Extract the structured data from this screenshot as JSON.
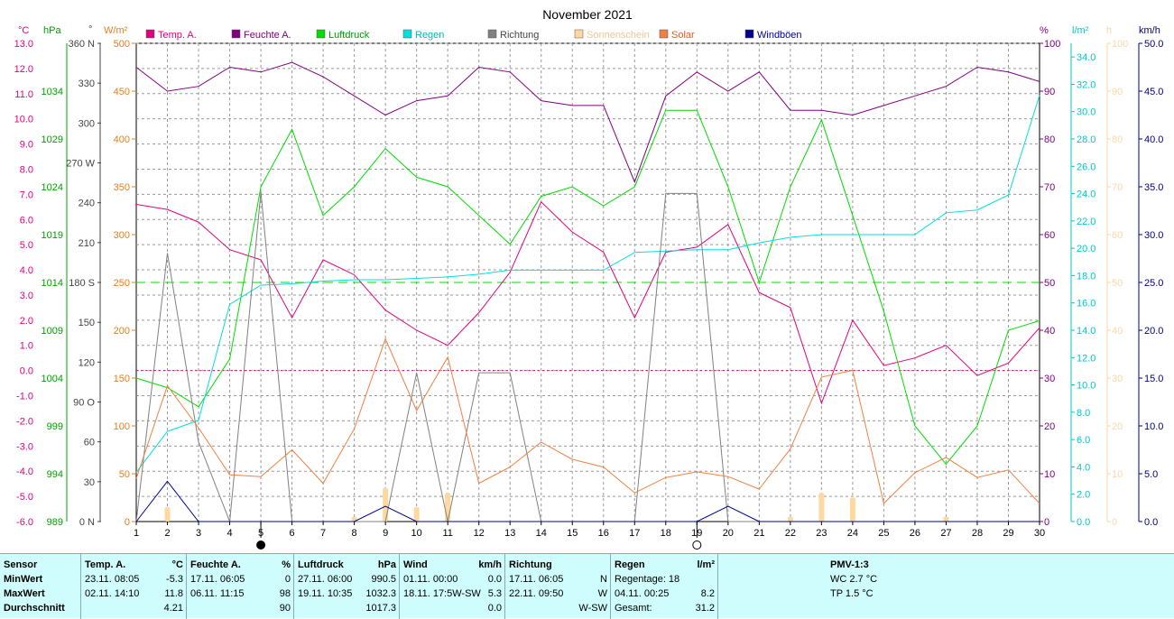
{
  "title": "November 2021",
  "axes_units": {
    "temp": "°C",
    "pressure": "hPa",
    "direction": "°",
    "solar": "W/m²",
    "humidity": "%",
    "rain": "l/m²",
    "sunshine": "h",
    "wind": "km/h"
  },
  "colors": {
    "temp": "#e0007f",
    "humidity": "#800080",
    "pressure": "#00dd00",
    "rain": "#00e0e0",
    "direction": "#808080",
    "sunshine": "#ffd8a0",
    "solar": "#f08040",
    "gust": "#000090",
    "temp_axis": "#e0007f",
    "pressure_axis": "#00a000",
    "solar_axis": "#e08020",
    "humidity_axis": "#800080",
    "rain_axis": "#00c8c8",
    "sunshine_axis": "#f8d8a8",
    "wind_axis": "#000080"
  },
  "chart_data": {
    "type": "line",
    "title": "November 2021",
    "x": [
      1,
      2,
      3,
      4,
      5,
      6,
      7,
      8,
      9,
      10,
      11,
      12,
      13,
      14,
      15,
      16,
      17,
      18,
      19,
      20,
      21,
      22,
      23,
      24,
      25,
      26,
      27,
      28,
      29,
      30
    ],
    "x_ticks": [
      "1",
      "2",
      "3",
      "4",
      "5",
      "6",
      "7",
      "8",
      "9",
      "10",
      "11",
      "12",
      "13",
      "14",
      "15",
      "16",
      "17",
      "18",
      "19",
      "20",
      "21",
      "22",
      "23",
      "24",
      "25",
      "26",
      "27",
      "28",
      "29",
      "30"
    ],
    "legend": [
      "Temp. A.",
      "Feuchte A.",
      "Luftdruck",
      "Regen",
      "Richtung",
      "Sonnenschein",
      "Solar",
      "Windböen"
    ],
    "axes": {
      "temp": {
        "unit": "°C",
        "ylim": [
          -6,
          13
        ],
        "ticks": [
          "13.0",
          "12.0",
          "11.0",
          "10.0",
          "9.0",
          "8.0",
          "7.0",
          "6.0",
          "5.0",
          "4.0",
          "3.0",
          "2.0",
          "1.0",
          "0.0",
          "-1.0",
          "-2.0",
          "-3.0",
          "-4.0",
          "-5.0",
          "-6.0"
        ]
      },
      "pressure": {
        "unit": "hPa",
        "ylim": [
          989,
          1039
        ],
        "ticks": [
          "1034",
          "1029",
          "1024",
          "1019",
          "1014",
          "1009",
          "1004",
          "999",
          "994",
          "989"
        ]
      },
      "direction": {
        "unit": "°",
        "ylim": [
          0,
          360
        ],
        "ticks": [
          "360 N",
          "330",
          "300",
          "270 W",
          "240",
          "210",
          "180 S",
          "150",
          "120",
          "90 O",
          "60",
          "30",
          "0 N"
        ]
      },
      "solar": {
        "unit": "W/m²",
        "ylim": [
          0,
          500
        ],
        "ticks": [
          "500",
          "450",
          "400",
          "350",
          "300",
          "250",
          "200",
          "150",
          "100",
          "50",
          "0"
        ]
      },
      "humidity": {
        "unit": "%",
        "ylim": [
          0,
          100
        ],
        "ticks": [
          "100",
          "90",
          "80",
          "70",
          "60",
          "50",
          "40",
          "30",
          "20",
          "10",
          "0"
        ]
      },
      "rain": {
        "unit": "l/m²",
        "ylim": [
          0,
          35
        ],
        "ticks": [
          "34.0",
          "32.0",
          "30.0",
          "28.0",
          "26.0",
          "24.0",
          "22.0",
          "20.0",
          "18.0",
          "16.0",
          "14.0",
          "12.0",
          "10.0",
          "8.0",
          "6.0",
          "4.0",
          "2.0",
          "0.0"
        ]
      },
      "sunshine": {
        "unit": "h",
        "ylim": [
          0,
          100
        ],
        "ticks": [
          "100",
          "90",
          "80",
          "70",
          "60",
          "50",
          "40",
          "30",
          "20",
          "10",
          "0"
        ]
      },
      "wind": {
        "unit": "km/h",
        "ylim": [
          0,
          50
        ],
        "ticks": [
          "50.0",
          "45.0",
          "40.0",
          "35.0",
          "30.0",
          "25.0",
          "20.0",
          "15.0",
          "10.0",
          "5.0",
          "0.0"
        ]
      }
    },
    "series": [
      {
        "name": "Temp. A.",
        "axis": "temp",
        "values": [
          6.6,
          6.4,
          5.9,
          4.8,
          4.4,
          2.1,
          4.4,
          3.8,
          2.4,
          1.6,
          1.0,
          2.3,
          3.9,
          6.7,
          5.5,
          4.7,
          2.1,
          4.7,
          4.9,
          5.8,
          3.1,
          2.5,
          -1.3,
          2.0,
          0.2,
          0.5,
          1.0,
          -0.2,
          0.3,
          1.7
        ]
      },
      {
        "name": "Feuchte A.",
        "axis": "humidity",
        "values": [
          95,
          90,
          91,
          95,
          94,
          96,
          93,
          89,
          85,
          88,
          89,
          95,
          94,
          88,
          87,
          87,
          71,
          89,
          94,
          90,
          94,
          86,
          86,
          85,
          87,
          89,
          91,
          95,
          94,
          92
        ]
      },
      {
        "name": "Luftdruck",
        "axis": "pressure",
        "values": [
          1004,
          1003,
          1001,
          1006,
          1024,
          1030,
          1021,
          1024,
          1028,
          1025,
          1024,
          1021,
          1018,
          1023,
          1024,
          1022,
          1024,
          1032,
          1032,
          1024,
          1014,
          1024,
          1031,
          1021,
          1011,
          999,
          995,
          999,
          1009,
          1010
        ]
      },
      {
        "name": "Regen",
        "axis": "rain",
        "values": [
          3.6,
          6.6,
          7.4,
          15.9,
          17.3,
          17.4,
          17.6,
          17.7,
          17.7,
          17.8,
          17.9,
          18.1,
          18.4,
          18.4,
          18.4,
          18.4,
          19.7,
          19.8,
          19.9,
          19.9,
          20.4,
          20.8,
          21.0,
          21.0,
          21.0,
          21.0,
          22.6,
          22.8,
          23.9,
          31.2
        ]
      },
      {
        "name": "Richtung",
        "axis": "direction",
        "values": [
          0,
          202,
          60,
          0,
          248,
          0,
          0,
          0,
          0,
          112,
          0,
          112,
          112,
          0,
          0,
          0,
          0,
          247,
          247,
          0,
          0,
          0,
          0,
          0,
          0,
          0,
          0,
          0,
          0,
          0
        ]
      },
      {
        "name": "Sonnenschein",
        "axis": "sunshine",
        "values": [
          0,
          3,
          0,
          0,
          0,
          0,
          0,
          1,
          7,
          3,
          6,
          0,
          0,
          0,
          0,
          0,
          0,
          0,
          0,
          0,
          0,
          1,
          6,
          5,
          0,
          0,
          1,
          0,
          0,
          0
        ]
      },
      {
        "name": "Solar",
        "axis": "solar",
        "values": [
          45,
          142,
          98,
          49,
          47,
          75,
          40,
          97,
          191,
          116,
          172,
          40,
          57,
          83,
          65,
          57,
          30,
          46,
          52,
          47,
          34,
          76,
          151,
          158,
          19,
          51,
          67,
          46,
          54,
          19
        ]
      },
      {
        "name": "Windböen",
        "axis": "wind",
        "values": [
          0.0,
          4.2,
          0.0,
          0.0,
          0.0,
          0.0,
          0.0,
          0.0,
          1.6,
          0.0,
          0.0,
          0.0,
          0.0,
          0.0,
          0.0,
          0.0,
          0.0,
          0.0,
          0.0,
          1.6,
          0.0,
          0.0,
          0.0,
          0.0,
          0.0,
          0.0,
          0.0,
          0.0,
          0.0,
          0.0
        ]
      }
    ],
    "reference_lines": [
      {
        "axis": "humidity",
        "value": 50,
        "style": "dashed",
        "color": "#00dd00"
      },
      {
        "axis": "temp",
        "value": 0,
        "style": "dotted",
        "color": "#e0007f"
      }
    ],
    "moon_phases": [
      {
        "day": 5,
        "phase": "new"
      },
      {
        "day": 19,
        "phase": "full"
      }
    ],
    "grid": true
  },
  "stats": {
    "sensor": {
      "header": "Sensor",
      "rows": [
        "MinWert",
        "MaxWert",
        "Durchschnitt"
      ]
    },
    "temp": {
      "header": "Temp. A.",
      "unit": "°C",
      "rows": [
        {
          "t": "23.11.  08:05",
          "v": "-5.3"
        },
        {
          "t": "02.11.  14:10",
          "v": "11.8"
        },
        {
          "t": "",
          "v": "4.21"
        }
      ]
    },
    "humidity": {
      "header": "Feuchte A.",
      "unit": "%",
      "rows": [
        {
          "t": "17.11.  06:05",
          "v": "0"
        },
        {
          "t": "06.11.  11:15",
          "v": "98"
        },
        {
          "t": "",
          "v": "90"
        }
      ]
    },
    "pressure": {
      "header": "Luftdruck",
      "unit": "hPa",
      "rows": [
        {
          "t": "27.11.  06:00",
          "v": "990.5"
        },
        {
          "t": "19.11.  10:35",
          "v": "1032.3"
        },
        {
          "t": "",
          "v": "1017.3"
        }
      ]
    },
    "wind": {
      "header": "Wind",
      "unit": "km/h",
      "rows": [
        {
          "t": "01.11.  00:00",
          "v": "0.0"
        },
        {
          "t": "18.11.  17:5W-SW",
          "v": "5.3"
        },
        {
          "t": "",
          "v": "0.0"
        }
      ]
    },
    "direction": {
      "header": "Richtung",
      "unit": "",
      "rows": [
        {
          "t": "17.11.  06:05",
          "v": "N"
        },
        {
          "t": "22.11.  09:50",
          "v": "W"
        },
        {
          "t": "",
          "v": "W-SW"
        }
      ]
    },
    "rain": {
      "header": "Regen",
      "unit": "l/m²",
      "rows": [
        {
          "t": "Regentage: 18",
          "v": ""
        },
        {
          "t": "04.11.  00:25",
          "v": "8.2"
        },
        {
          "t": "Gesamt:",
          "v": "31.2"
        }
      ]
    },
    "pmv": {
      "header": "PMV-1:3",
      "rows": [
        "WC 2.7 °C",
        "TP 1.5 °C"
      ]
    }
  }
}
